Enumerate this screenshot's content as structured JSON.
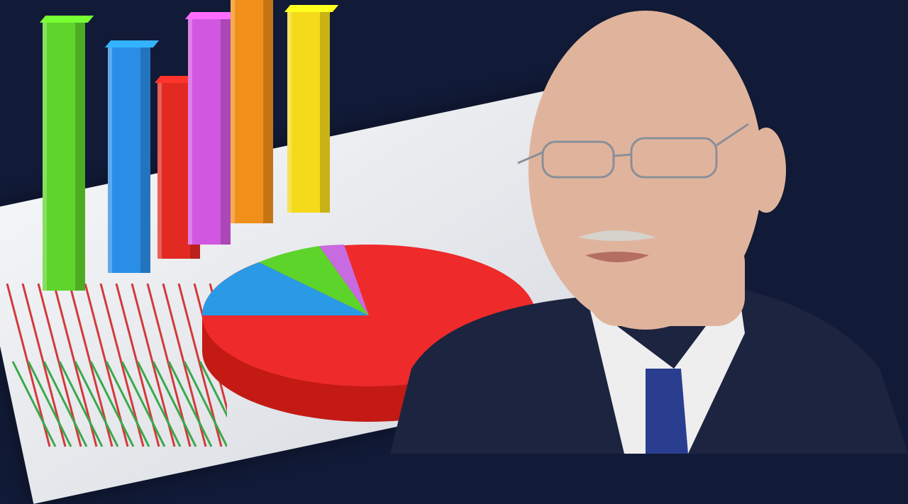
{
  "colors": {
    "background": "#111a36",
    "bars": [
      "#5fd42a",
      "#2a8ee6",
      "#e32a22",
      "#d257e0",
      "#f0901a",
      "#f4da1a"
    ],
    "pie": {
      "main": "#ee2a2a",
      "blue": "#2a9ae6",
      "green": "#5dd42a",
      "purple": "#c86ae0"
    },
    "suit": "#1c2440",
    "shirt": "#eeeeee",
    "tie": "#2a3e90",
    "skin": "#e0b49c"
  }
}
